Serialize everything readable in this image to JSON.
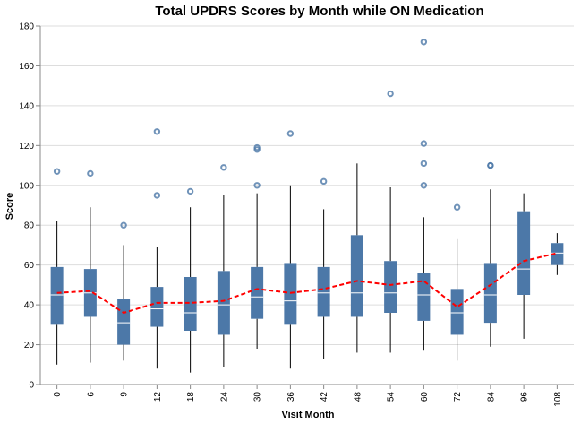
{
  "chart_data": {
    "type": "boxplot",
    "title": "Total UPDRS Scores by Month while ON Medication",
    "xlabel": "Visit Month",
    "ylabel": "Score",
    "ylim": [
      0,
      180
    ],
    "yticks": [
      0,
      20,
      40,
      60,
      80,
      100,
      120,
      140,
      160,
      180
    ],
    "grid": true,
    "colors": {
      "box": "#4c78a8",
      "median": "#ffffff",
      "whisker": "#000000",
      "outlier": "#4c78a8",
      "mean_line": "#ff0000"
    },
    "categories": [
      "0",
      "6",
      "9",
      "12",
      "18",
      "24",
      "30",
      "36",
      "42",
      "48",
      "54",
      "60",
      "72",
      "84",
      "96",
      "108"
    ],
    "boxes": [
      {
        "month": "0",
        "min": 10,
        "q1": 30,
        "median": 45,
        "q3": 59,
        "max": 82,
        "outliers": [
          107
        ]
      },
      {
        "month": "6",
        "min": 11,
        "q1": 34,
        "median": 46,
        "q3": 58,
        "max": 89,
        "outliers": [
          106
        ]
      },
      {
        "month": "9",
        "min": 12,
        "q1": 20,
        "median": 31,
        "q3": 43,
        "max": 70,
        "outliers": [
          80
        ]
      },
      {
        "month": "12",
        "min": 8,
        "q1": 29,
        "median": 38,
        "q3": 49,
        "max": 69,
        "outliers": [
          95,
          127
        ]
      },
      {
        "month": "18",
        "min": 6,
        "q1": 27,
        "median": 36,
        "q3": 54,
        "max": 89,
        "outliers": [
          97
        ]
      },
      {
        "month": "24",
        "min": 9,
        "q1": 25,
        "median": 40,
        "q3": 57,
        "max": 95,
        "outliers": [
          109
        ]
      },
      {
        "month": "30",
        "min": 18,
        "q1": 33,
        "median": 44,
        "q3": 59,
        "max": 96,
        "outliers": [
          100,
          118,
          119
        ]
      },
      {
        "month": "36",
        "min": 8,
        "q1": 30,
        "median": 42,
        "q3": 61,
        "max": 100,
        "outliers": [
          126
        ]
      },
      {
        "month": "42",
        "min": 13,
        "q1": 34,
        "median": 46,
        "q3": 59,
        "max": 88,
        "outliers": [
          102
        ]
      },
      {
        "month": "48",
        "min": 16,
        "q1": 34,
        "median": 46,
        "q3": 75,
        "max": 111,
        "outliers": []
      },
      {
        "month": "54",
        "min": 16,
        "q1": 36,
        "median": 46,
        "q3": 62,
        "max": 99,
        "outliers": [
          146
        ]
      },
      {
        "month": "60",
        "min": 17,
        "q1": 32,
        "median": 45,
        "q3": 56,
        "max": 84,
        "outliers": [
          100,
          111,
          121,
          172
        ]
      },
      {
        "month": "72",
        "min": 12,
        "q1": 25,
        "median": 36,
        "q3": 48,
        "max": 73,
        "outliers": [
          89
        ]
      },
      {
        "month": "84",
        "min": 19,
        "q1": 31,
        "median": 45,
        "q3": 61,
        "max": 98,
        "outliers": [
          110,
          110
        ]
      },
      {
        "month": "96",
        "min": 23,
        "q1": 45,
        "median": 58,
        "q3": 87,
        "max": 96,
        "outliers": []
      },
      {
        "month": "108",
        "min": 55,
        "q1": 60,
        "median": 66,
        "q3": 71,
        "max": 76,
        "outliers": []
      }
    ],
    "mean_line": [
      46,
      47,
      36,
      41,
      41,
      42,
      48,
      46,
      48,
      52,
      50,
      52,
      39,
      50,
      62,
      66
    ]
  }
}
